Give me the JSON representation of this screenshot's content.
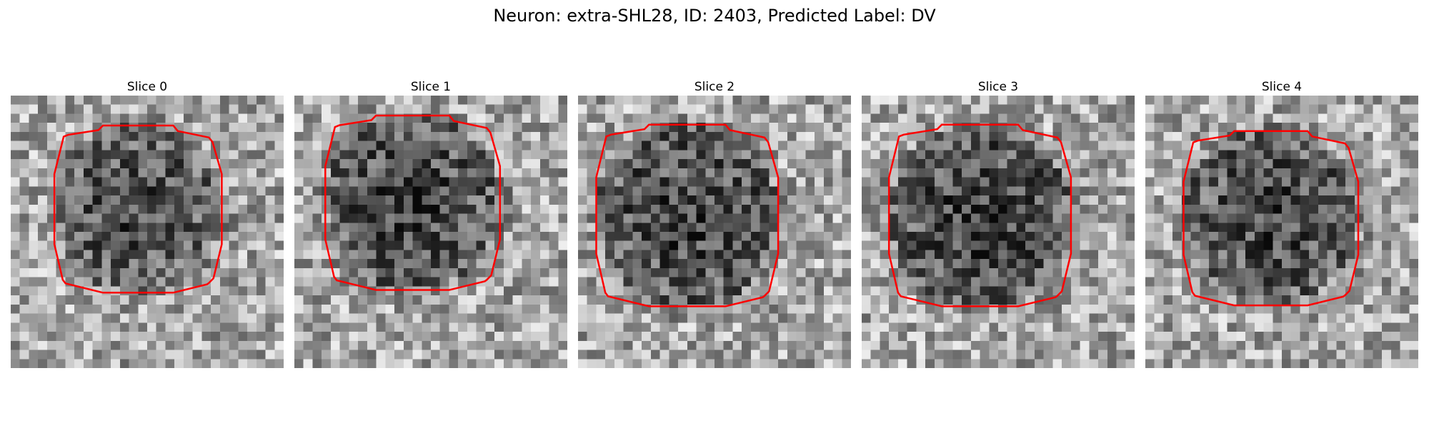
{
  "figure": {
    "title": "Neuron: extra-SHL28, ID: 2403, Predicted Label: DV"
  },
  "colors": {
    "contour": "#ff0000",
    "background": "#ffffff"
  },
  "panels": [
    {
      "title": "Slice 0",
      "seed": 11,
      "center_rc": [
        12.5,
        14.0
      ],
      "radius": 9.2,
      "dark": 0.55
    },
    {
      "title": "Slice 1",
      "seed": 29,
      "center_rc": [
        11.8,
        13.0
      ],
      "radius": 9.6,
      "dark": 0.6
    },
    {
      "title": "Slice 2",
      "seed": 47,
      "center_rc": [
        13.2,
        12.0
      ],
      "radius": 10.0,
      "dark": 0.6
    },
    {
      "title": "Slice 3",
      "seed": 63,
      "center_rc": [
        13.2,
        13.0
      ],
      "radius": 10.0,
      "dark": 0.62
    },
    {
      "title": "Slice 4",
      "seed": 81,
      "center_rc": [
        13.5,
        13.8
      ],
      "radius": 9.6,
      "dark": 0.58
    }
  ]
}
